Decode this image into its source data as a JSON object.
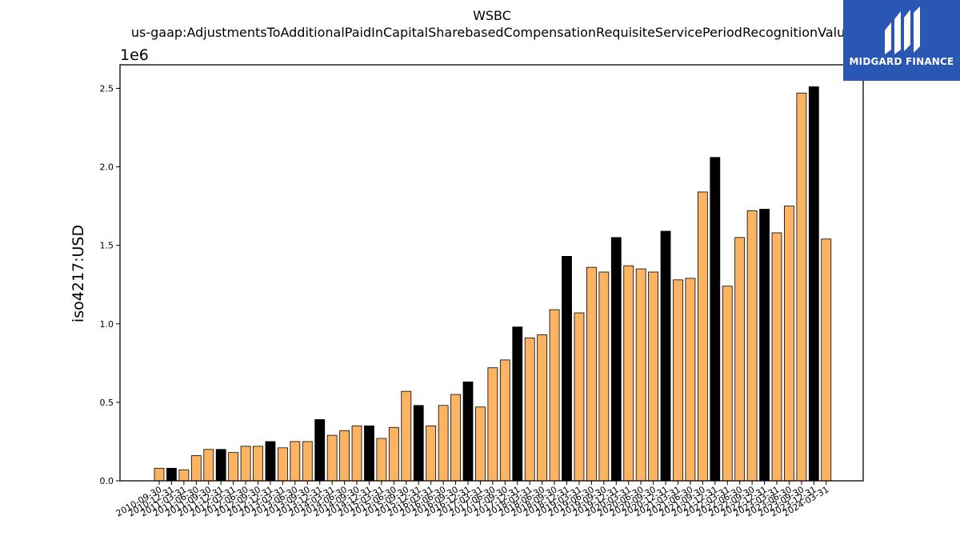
{
  "chart_data": {
    "type": "bar",
    "title": "WSBC",
    "subtitle": "us-gaap:AdjustmentsToAdditionalPaidInCapitalSharebasedCompensationRequisiteServicePeriodRecognitionValue",
    "xlabel": "",
    "ylabel": "iso4217:USD",
    "scale_label": "1e6",
    "ylim": [
      0,
      2.65
    ],
    "yticks": [
      "0.0",
      "0.5",
      "1.0",
      "1.5",
      "2.0",
      "2.5"
    ],
    "grid": false,
    "colors": {
      "quarter": "#fdb462",
      "annual": "#000000"
    },
    "categories": [
      "2010-09-30",
      "2010-12-31",
      "2011-03-31",
      "2011-06-30",
      "2011-09-30",
      "2011-12-31",
      "2012-03-31",
      "2012-06-30",
      "2012-09-30",
      "2012-12-31",
      "2013-03-31",
      "2013-06-30",
      "2013-09-30",
      "2013-12-31",
      "2014-03-31",
      "2014-06-30",
      "2014-09-30",
      "2014-12-31",
      "2015-03-31",
      "2015-06-30",
      "2015-09-30",
      "2015-12-31",
      "2016-03-31",
      "2016-06-30",
      "2016-09-30",
      "2016-12-31",
      "2017-03-31",
      "2017-06-30",
      "2017-09-30",
      "2017-12-31",
      "2018-03-31",
      "2018-06-30",
      "2018-09-30",
      "2018-12-31",
      "2019-03-31",
      "2019-06-30",
      "2019-09-30",
      "2019-12-31",
      "2020-03-31",
      "2020-06-30",
      "2020-09-30",
      "2020-12-31",
      "2021-03-31",
      "2021-06-30",
      "2021-09-30",
      "2021-12-31",
      "2022-03-31",
      "2022-06-30",
      "2022-09-30",
      "2022-12-31",
      "2023-03-31",
      "2023-06-30",
      "2023-09-30",
      "2023-12-31",
      "2024-03-31"
    ],
    "values": [
      0.08,
      0.08,
      0.07,
      0.16,
      0.2,
      0.2,
      0.18,
      0.22,
      0.22,
      0.25,
      0.21,
      0.25,
      0.25,
      0.39,
      0.29,
      0.32,
      0.35,
      0.35,
      0.27,
      0.34,
      0.57,
      0.48,
      0.35,
      0.48,
      0.55,
      0.63,
      0.47,
      0.72,
      0.77,
      0.98,
      0.91,
      0.93,
      1.09,
      1.43,
      1.07,
      1.36,
      1.33,
      1.55,
      1.37,
      1.35,
      1.33,
      1.59,
      1.28,
      1.29,
      1.84,
      2.06,
      1.24,
      1.55,
      1.72,
      1.73,
      1.58,
      1.75,
      2.47,
      2.51,
      1.54
    ],
    "annual_flags": [
      0,
      1,
      0,
      0,
      0,
      1,
      0,
      0,
      0,
      1,
      0,
      0,
      0,
      1,
      0,
      0,
      0,
      1,
      0,
      0,
      0,
      1,
      0,
      0,
      0,
      1,
      0,
      0,
      0,
      1,
      0,
      0,
      0,
      1,
      0,
      0,
      0,
      1,
      0,
      0,
      0,
      1,
      0,
      0,
      0,
      1,
      0,
      0,
      0,
      1,
      0,
      0,
      0,
      1,
      0
    ]
  },
  "logo": {
    "text": "MIDGARD FINANCE",
    "icon": "midgard-logo-icon"
  }
}
